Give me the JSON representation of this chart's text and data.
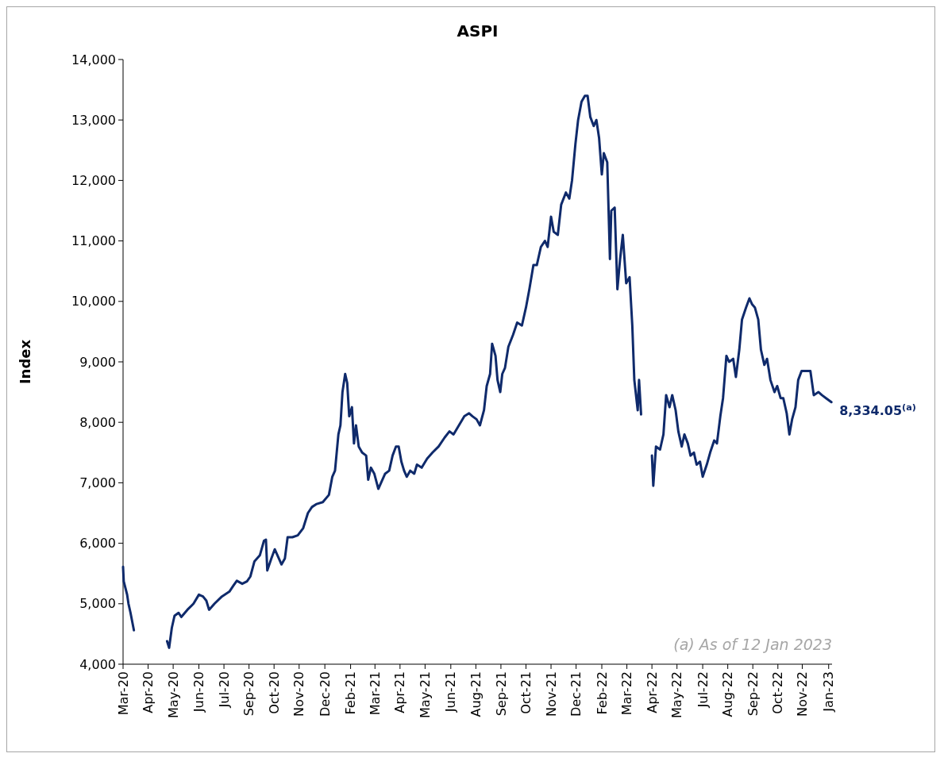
{
  "chart_data": {
    "type": "line",
    "title": "ASPI",
    "ylabel": "Index",
    "ylim": [
      4000,
      14000
    ],
    "yticks": [
      {
        "value": 4000,
        "label": "4,000"
      },
      {
        "value": 5000,
        "label": "5,000"
      },
      {
        "value": 6000,
        "label": "6,000"
      },
      {
        "value": 7000,
        "label": "7,000"
      },
      {
        "value": 8000,
        "label": "8,000"
      },
      {
        "value": 9000,
        "label": "9,000"
      },
      {
        "value": 10000,
        "label": "10,000"
      },
      {
        "value": 11000,
        "label": "11,000"
      },
      {
        "value": 12000,
        "label": "12,000"
      },
      {
        "value": 13000,
        "label": "13,000"
      },
      {
        "value": 14000,
        "label": "14,000"
      }
    ],
    "xlim": [
      "2020-03-02",
      "2023-01-13"
    ],
    "xticks": [
      {
        "value": "2020-03-02",
        "label": "Mar-20"
      },
      {
        "value": "2020-04-08",
        "label": "Apr-20"
      },
      {
        "value": "2020-05-15",
        "label": "May-20"
      },
      {
        "value": "2020-06-22",
        "label": "Jun-20"
      },
      {
        "value": "2020-07-29",
        "label": "Jul-20"
      },
      {
        "value": "2020-09-04",
        "label": "Sep-20"
      },
      {
        "value": "2020-10-11",
        "label": "Oct-20"
      },
      {
        "value": "2020-11-17",
        "label": "Nov-20"
      },
      {
        "value": "2020-12-25",
        "label": "Dec-20"
      },
      {
        "value": "2021-02-01",
        "label": "Feb-21"
      },
      {
        "value": "2021-03-09",
        "label": "Mar-21"
      },
      {
        "value": "2021-04-15",
        "label": "Apr-21"
      },
      {
        "value": "2021-05-22",
        "label": "May-21"
      },
      {
        "value": "2021-06-29",
        "label": "Jun-21"
      },
      {
        "value": "2021-08-05",
        "label": "Aug-21"
      },
      {
        "value": "2021-09-11",
        "label": "Sep-21"
      },
      {
        "value": "2021-10-18",
        "label": "Oct-21"
      },
      {
        "value": "2021-11-24",
        "label": "Nov-21"
      },
      {
        "value": "2021-12-31",
        "label": "Dec-21"
      },
      {
        "value": "2022-02-07",
        "label": "Feb-22"
      },
      {
        "value": "2022-03-16",
        "label": "Mar-22"
      },
      {
        "value": "2022-04-22",
        "label": "Apr-22"
      },
      {
        "value": "2022-05-29",
        "label": "May-22"
      },
      {
        "value": "2022-07-06",
        "label": "Jul-22"
      },
      {
        "value": "2022-08-12",
        "label": "Aug-22"
      },
      {
        "value": "2022-09-18",
        "label": "Sep-22"
      },
      {
        "value": "2022-10-25",
        "label": "Oct-22"
      },
      {
        "value": "2022-11-30",
        "label": "Nov-22"
      },
      {
        "value": "2023-01-08",
        "label": "Jan-23"
      }
    ],
    "grid": false,
    "annotations": [
      {
        "text": "8,334.05$^{(a)}$",
        "x": "2023-01-12",
        "y": 8334.05
      },
      "(a) As of 12 Jan 2023"
    ],
    "series": [
      {
        "color": "#0f2a6b",
        "x": [
          "2020-03-02",
          "2020-03-03",
          "2020-03-08",
          "2020-03-10",
          "2020-03-13",
          "2020-03-18",
          "2020-04-20",
          "2020-05-06",
          "2020-05-09",
          "2020-05-13",
          "2020-05-17",
          "2020-05-23",
          "2020-05-27",
          "2020-06-05",
          "2020-06-14",
          "2020-06-22",
          "2020-06-28",
          "2020-07-03",
          "2020-07-07",
          "2020-07-15",
          "2020-07-26",
          "2020-08-06",
          "2020-08-12",
          "2020-08-17",
          "2020-08-25",
          "2020-09-01",
          "2020-09-06",
          "2020-09-12",
          "2020-09-20",
          "2020-09-26",
          "2020-09-29",
          "2020-10-01",
          "2020-10-07",
          "2020-10-12",
          "2020-10-18",
          "2020-10-22",
          "2020-10-27",
          "2020-10-31",
          "2020-11-07",
          "2020-11-15",
          "2020-11-23",
          "2020-11-30",
          "2020-12-06",
          "2020-12-13",
          "2020-12-22",
          "2020-12-31",
          "2021-01-05",
          "2021-01-09",
          "2021-01-14",
          "2021-01-17",
          "2021-01-20",
          "2021-01-24",
          "2021-01-27",
          "2021-01-30",
          "2021-02-03",
          "2021-02-06",
          "2021-02-09",
          "2021-02-13",
          "2021-02-18",
          "2021-02-24",
          "2021-02-27",
          "2021-03-03",
          "2021-03-08",
          "2021-03-14",
          "2021-03-18",
          "2021-03-24",
          "2021-03-30",
          "2021-04-04",
          "2021-04-09",
          "2021-04-13",
          "2021-04-17",
          "2021-04-21",
          "2021-04-25",
          "2021-04-30",
          "2021-05-06",
          "2021-05-10",
          "2021-05-17",
          "2021-05-25",
          "2021-06-02",
          "2021-06-11",
          "2021-06-20",
          "2021-06-27",
          "2021-07-03",
          "2021-07-11",
          "2021-07-19",
          "2021-07-26",
          "2021-07-31",
          "2021-08-06",
          "2021-08-11",
          "2021-08-17",
          "2021-08-21",
          "2021-08-26",
          "2021-08-29",
          "2021-09-03",
          "2021-09-06",
          "2021-09-10",
          "2021-09-13",
          "2021-09-17",
          "2021-09-22",
          "2021-09-29",
          "2021-10-05",
          "2021-10-12",
          "2021-10-18",
          "2021-10-23",
          "2021-10-29",
          "2021-11-03",
          "2021-11-09",
          "2021-11-15",
          "2021-11-19",
          "2021-11-24",
          "2021-11-28",
          "2021-12-04",
          "2021-12-09",
          "2021-12-16",
          "2021-12-21",
          "2021-12-25",
          "2021-12-30",
          "2022-01-03",
          "2022-01-08",
          "2022-01-13",
          "2022-01-17",
          "2022-01-21",
          "2022-01-26",
          "2022-01-30",
          "2022-02-03",
          "2022-02-07",
          "2022-02-10",
          "2022-02-15",
          "2022-02-19",
          "2022-02-21",
          "2022-02-26",
          "2022-03-02",
          "2022-03-06",
          "2022-03-10",
          "2022-03-15",
          "2022-03-20",
          "2022-03-24",
          "2022-03-27",
          "2022-04-01",
          "2022-04-03",
          "2022-04-06",
          "2022-04-14",
          "2022-04-22",
          "2022-04-24",
          "2022-04-28",
          "2022-05-04",
          "2022-05-09",
          "2022-05-13",
          "2022-05-18",
          "2022-05-22",
          "2022-05-27",
          "2022-05-31",
          "2022-06-05",
          "2022-06-09",
          "2022-06-14",
          "2022-06-18",
          "2022-06-23",
          "2022-06-27",
          "2022-07-02",
          "2022-07-06",
          "2022-07-12",
          "2022-07-17",
          "2022-07-23",
          "2022-07-27",
          "2022-08-01",
          "2022-08-05",
          "2022-08-10",
          "2022-08-14",
          "2022-08-20",
          "2022-08-24",
          "2022-08-29",
          "2022-09-02",
          "2022-09-08",
          "2022-09-13",
          "2022-09-17",
          "2022-09-21",
          "2022-09-26",
          "2022-09-30",
          "2022-10-05",
          "2022-10-09",
          "2022-10-14",
          "2022-10-20",
          "2022-10-24",
          "2022-10-29",
          "2022-11-02",
          "2022-11-07",
          "2022-11-11",
          "2022-11-15",
          "2022-11-20",
          "2022-11-24",
          "2022-11-29",
          "2022-12-06",
          "2022-12-12",
          "2022-12-17",
          "2022-12-24",
          "2022-12-29",
          "2023-01-04",
          "2023-01-12"
        ],
        "values": [
          5610,
          5370,
          5150,
          5000,
          4850,
          4560,
          null,
          4380,
          4270,
          4600,
          4800,
          4850,
          4780,
          4900,
          5000,
          5150,
          5120,
          5050,
          4900,
          5000,
          5120,
          5200,
          5300,
          5380,
          5330,
          5370,
          5450,
          5700,
          5800,
          6040,
          6060,
          5550,
          5750,
          5900,
          5750,
          5650,
          5750,
          6100,
          6100,
          6130,
          6250,
          6500,
          6600,
          6650,
          6680,
          6800,
          7100,
          7200,
          7800,
          7950,
          8500,
          8800,
          8650,
          8100,
          8250,
          7650,
          7950,
          7600,
          7500,
          7450,
          7050,
          7250,
          7150,
          6900,
          7000,
          7150,
          7200,
          7450,
          7600,
          7600,
          7350,
          7200,
          7100,
          7200,
          7150,
          7300,
          7250,
          7400,
          7500,
          7600,
          7750,
          7850,
          7800,
          7950,
          8100,
          8150,
          8100,
          8050,
          7950,
          8200,
          8600,
          8800,
          9300,
          9100,
          8700,
          8500,
          8800,
          8900,
          9250,
          9450,
          9650,
          9600,
          9900,
          10200,
          10600,
          10600,
          10900,
          11000,
          10900,
          11400,
          11150,
          11100,
          11600,
          11800,
          11700,
          12000,
          12600,
          13000,
          13300,
          13400,
          13400,
          13050,
          12900,
          13000,
          12700,
          12100,
          12450,
          12300,
          10700,
          11500,
          11550,
          10200,
          10700,
          11100,
          10300,
          10400,
          9600,
          8700,
          8200,
          8700,
          8130,
          null,
          7450,
          6950,
          7600,
          7550,
          7800,
          8450,
          8250,
          8450,
          8200,
          7850,
          7600,
          7800,
          7650,
          7450,
          7500,
          7300,
          7350,
          7100,
          7300,
          7500,
          7700,
          7650,
          8100,
          8400,
          9100,
          9000,
          9050,
          8750,
          9200,
          9700,
          9900,
          10050,
          9950,
          9900,
          9700,
          9200,
          8950,
          9050,
          8700,
          8500,
          8600,
          8400,
          8400,
          8150,
          7800,
          8050,
          8250,
          8700,
          8850,
          8850,
          8850,
          8450,
          8500,
          8450,
          8400,
          8334
        ]
      }
    ]
  }
}
